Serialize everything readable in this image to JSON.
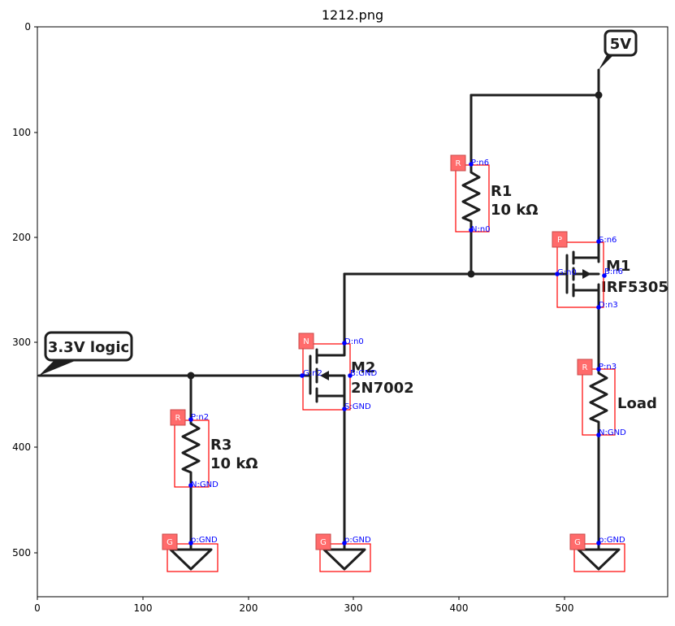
{
  "figure": {
    "title": "1212.png",
    "x_ticks": [
      "0",
      "100",
      "200",
      "300",
      "400",
      "500"
    ],
    "y_ticks": [
      "0",
      "100",
      "200",
      "300",
      "400",
      "500"
    ]
  },
  "schematic": {
    "callouts": {
      "supply": "5V",
      "input": "3.3V logic"
    },
    "components": {
      "r1": {
        "name": "R1",
        "value": "10 kΩ"
      },
      "r3": {
        "name": "R3",
        "value": "10 kΩ"
      },
      "m1": {
        "name": "M1",
        "part": "IRF5305"
      },
      "m2": {
        "name": "M2",
        "part": "2N7002"
      },
      "load": {
        "name": "Load"
      }
    }
  },
  "annotations": {
    "tags": {
      "r1": "R",
      "r3": "R",
      "load": "R",
      "m1": "P",
      "m2": "N",
      "g1": "G",
      "g2": "G",
      "g3": "G"
    },
    "pins": {
      "r1_p": "P:n6",
      "r1_n": "N:n0",
      "m1_s": "S:n6",
      "m1_g": "G:n0",
      "m1_b": "B:n6",
      "m1_d": "D:n3",
      "m2_d": "D:n0",
      "m2_g": "G:n2",
      "m2_b": "B:GND",
      "m2_s": "S:GND",
      "r3_p": "P:n2",
      "r3_n": "N:GND",
      "load_p": "P:n3",
      "load_n": "N:GND",
      "g1": "p:GND",
      "g2": "p:GND",
      "g3": "p:GND"
    }
  },
  "colors": {
    "wire": "#1e1e1e",
    "bbox": "#ff0000",
    "tag_fill": "#ff6b6b",
    "pin_text": "#0000ff"
  }
}
